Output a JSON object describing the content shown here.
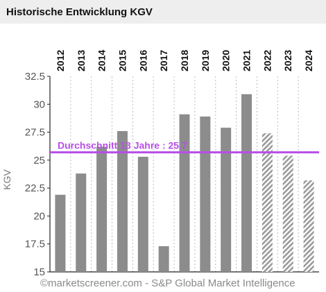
{
  "header": {
    "title": "Historische Entwicklung KGV"
  },
  "chart_data": {
    "type": "bar",
    "categories": [
      "2012",
      "2013",
      "2014",
      "2015",
      "2016",
      "2017",
      "2018",
      "2019",
      "2020",
      "2021",
      "2022",
      "2023",
      "2024"
    ],
    "values": [
      21.9,
      23.8,
      26.2,
      27.6,
      25.3,
      17.3,
      29.1,
      28.9,
      27.9,
      30.9,
      27.4,
      25.4,
      23.2
    ],
    "estimated": [
      false,
      false,
      false,
      false,
      false,
      false,
      false,
      false,
      false,
      false,
      true,
      true,
      true
    ],
    "ylabel": "KGV",
    "ylim": [
      15,
      32.5
    ],
    "yticks": [
      15,
      17.5,
      20,
      22.5,
      25,
      27.5,
      30,
      32.5
    ],
    "ytick_labels": [
      "15",
      "17.5",
      "20",
      "22.5",
      "25",
      "27.5",
      "30",
      "32.5"
    ],
    "average": {
      "value": 25.7,
      "label": "Durchschnitt 13 Jahre : 25.7"
    },
    "grid": true,
    "source": "©marketscreener.com - S&P Global Market Intelligence",
    "colors": {
      "bar": "#8c8c8c",
      "estimate": "#9a9a9a",
      "average": "#b84ee8",
      "grid": "#bbbbbb"
    }
  }
}
